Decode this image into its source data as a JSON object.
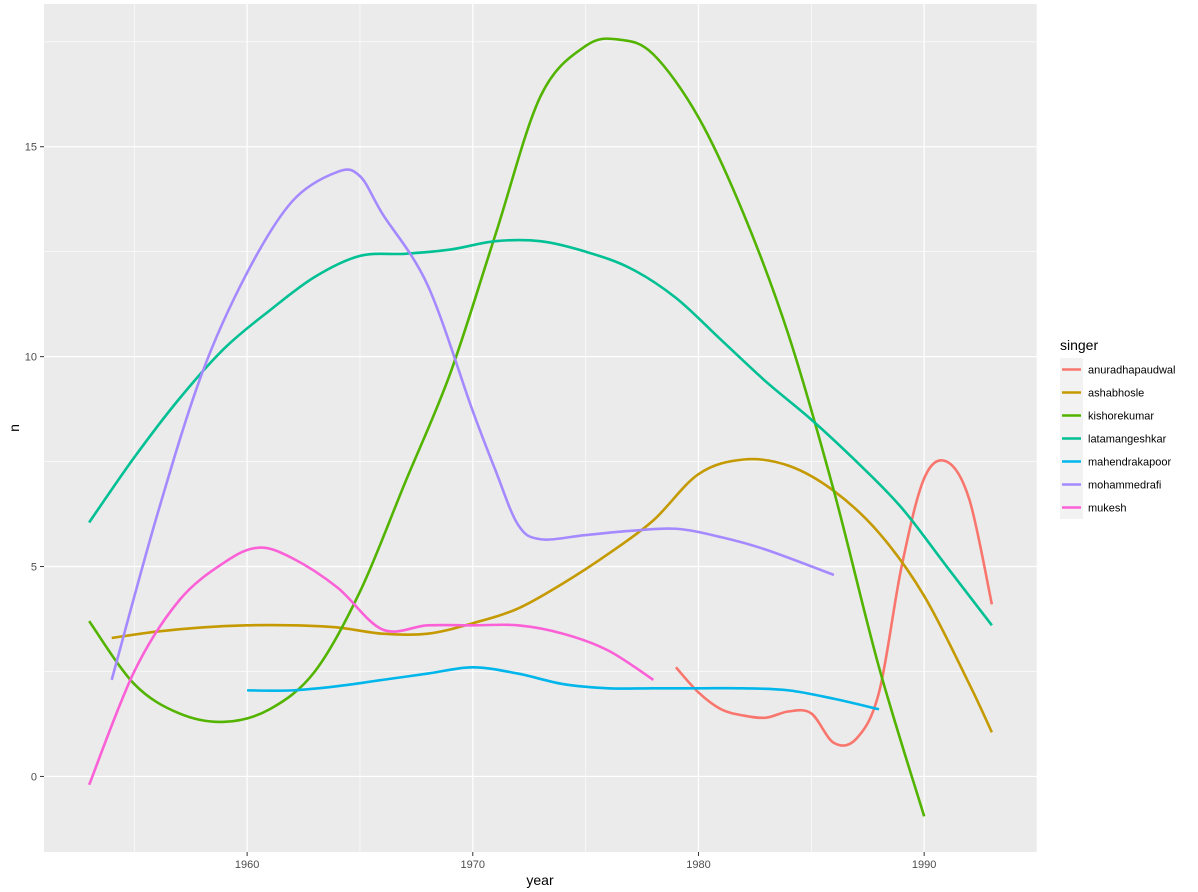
{
  "chart_data": {
    "type": "line",
    "title": "",
    "xlabel": "year",
    "ylabel": "n",
    "xlim": [
      1951,
      1995
    ],
    "ylim": [
      -1.8,
      18.4
    ],
    "x_ticks": [
      1960,
      1970,
      1980,
      1990
    ],
    "y_ticks": [
      0,
      5,
      10,
      15
    ],
    "grid": true,
    "legend": {
      "title": "singer",
      "position": "right"
    },
    "series": [
      {
        "name": "anuradhapaudwal",
        "color": "#F8766D",
        "x": [
          1979,
          1980,
          1981,
          1982,
          1983,
          1984,
          1985,
          1986,
          1987,
          1988,
          1989,
          1990,
          1991,
          1992,
          1993
        ],
        "y": [
          2.6,
          2.0,
          1.6,
          1.45,
          1.4,
          1.55,
          1.5,
          0.8,
          0.9,
          2.0,
          5.0,
          7.1,
          7.5,
          6.6,
          4.1
        ]
      },
      {
        "name": "ashabhosle",
        "color": "#C49A00",
        "x": [
          1954,
          1956,
          1958,
          1960,
          1962,
          1964,
          1966,
          1968,
          1970,
          1972,
          1974,
          1976,
          1978,
          1980,
          1982,
          1984,
          1986,
          1988,
          1990,
          1992,
          1993
        ],
        "y": [
          3.3,
          3.45,
          3.55,
          3.6,
          3.6,
          3.55,
          3.4,
          3.4,
          3.65,
          4.0,
          4.6,
          5.3,
          6.1,
          7.2,
          7.55,
          7.4,
          6.8,
          5.8,
          4.3,
          2.2,
          1.05
        ]
      },
      {
        "name": "kishorekumar",
        "color": "#53B400",
        "x": [
          1953,
          1955,
          1957,
          1959,
          1961,
          1963,
          1965,
          1967,
          1969,
          1971,
          1973,
          1975,
          1976.5,
          1978,
          1980,
          1982,
          1984,
          1986,
          1988,
          1990
        ],
        "y": [
          3.7,
          2.2,
          1.5,
          1.3,
          1.6,
          2.5,
          4.4,
          7.0,
          9.6,
          12.9,
          16.2,
          17.4,
          17.55,
          17.2,
          15.7,
          13.4,
          10.5,
          6.8,
          2.6,
          -0.95
        ]
      },
      {
        "name": "latamangeshkar",
        "color": "#00C094",
        "x": [
          1953,
          1955,
          1957,
          1959,
          1961,
          1963,
          1965,
          1967,
          1969,
          1971,
          1973,
          1975,
          1977,
          1979,
          1981,
          1983,
          1985,
          1987,
          1989,
          1991,
          1993
        ],
        "y": [
          6.05,
          7.6,
          9.0,
          10.2,
          11.1,
          11.9,
          12.4,
          12.45,
          12.55,
          12.75,
          12.75,
          12.5,
          12.1,
          11.4,
          10.4,
          9.4,
          8.5,
          7.5,
          6.4,
          5.0,
          3.6
        ]
      },
      {
        "name": "mahendrakapoor",
        "color": "#00B6EB",
        "x": [
          1960,
          1962,
          1964,
          1966,
          1968,
          1970,
          1972,
          1974,
          1976,
          1978,
          1980,
          1982,
          1984,
          1986,
          1988
        ],
        "y": [
          2.05,
          2.05,
          2.15,
          2.3,
          2.45,
          2.6,
          2.45,
          2.2,
          2.1,
          2.1,
          2.1,
          2.1,
          2.05,
          1.85,
          1.6
        ]
      },
      {
        "name": "mohammedrafi",
        "color": "#A58AFF",
        "x": [
          1954,
          1956,
          1958,
          1960,
          1962,
          1964,
          1965,
          1966,
          1968,
          1970,
          1971,
          1972,
          1973,
          1975,
          1977,
          1979,
          1981,
          1983,
          1986
        ],
        "y": [
          2.3,
          6.2,
          9.6,
          12.0,
          13.7,
          14.4,
          14.3,
          13.4,
          11.7,
          8.7,
          7.3,
          6.0,
          5.65,
          5.75,
          5.85,
          5.9,
          5.7,
          5.4,
          4.8
        ]
      },
      {
        "name": "mukesh",
        "color": "#FB61D7",
        "x": [
          1953,
          1955,
          1957,
          1959,
          1960.5,
          1962,
          1964,
          1966,
          1968,
          1970,
          1972,
          1974,
          1976,
          1978
        ],
        "y": [
          -0.2,
          2.5,
          4.2,
          5.1,
          5.45,
          5.2,
          4.5,
          3.5,
          3.6,
          3.6,
          3.6,
          3.4,
          3.0,
          2.3
        ]
      }
    ]
  }
}
